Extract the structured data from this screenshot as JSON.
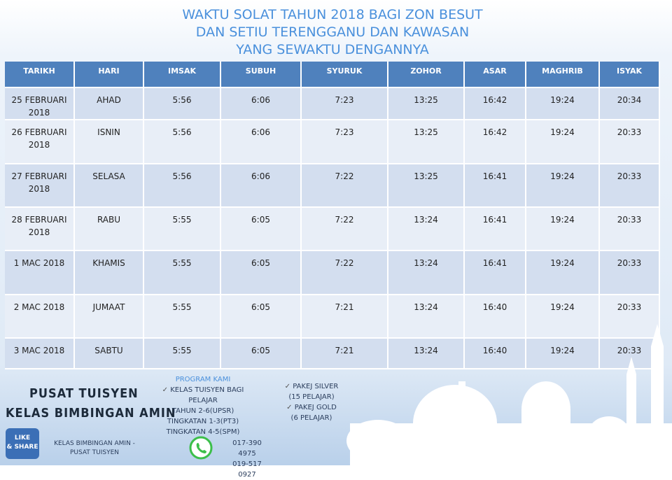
{
  "header": {
    "title_lines": [
      "WAKTU SOLAT TAHUN 2018 BAGI ZON BESUT",
      "DAN SETIU TERENGGANU DAN KAWASAN",
      "YANG SEWAKTU DENGANNYA"
    ]
  },
  "table": {
    "columns": [
      "TARIKH",
      "HARI",
      "IMSAK",
      "SUBUH",
      "SYURUK",
      "ZOHOR",
      "ASAR",
      "MAGHRIB",
      "ISYAK"
    ],
    "rows": [
      [
        "25 FEBRUARI 2018",
        "AHAD",
        "5:56",
        "6:06",
        "7:23",
        "13:25",
        "16:42",
        "19:24",
        "20:34"
      ],
      [
        "26 FEBRUARI 2018",
        "ISNIN",
        "5:56",
        "6:06",
        "7:23",
        "13:25",
        "16:42",
        "19:24",
        "20:33"
      ],
      [
        "27 FEBRUARI 2018",
        "SELASA",
        "5:56",
        "6:06",
        "7:22",
        "13:25",
        "16:41",
        "19:24",
        "20:33"
      ],
      [
        "28 FEBRUARI 2018",
        "RABU",
        "5:55",
        "6:05",
        "7:22",
        "13:24",
        "16:41",
        "19:24",
        "20:33"
      ],
      [
        "1 MAC 2018",
        "KHAMIS",
        "5:55",
        "6:05",
        "7:22",
        "13:24",
        "16:41",
        "19:24",
        "20:33"
      ],
      [
        "2 MAC 2018",
        "JUMAAT",
        "5:55",
        "6:05",
        "7:21",
        "13:24",
        "16:40",
        "19:24",
        "20:33"
      ],
      [
        "3 MAC 2018",
        "SABTU",
        "5:55",
        "6:05",
        "7:21",
        "13:24",
        "16:40",
        "19:24",
        "20:33"
      ]
    ]
  },
  "footer": {
    "brand_lines": [
      "PUSAT TUISYEN",
      "KELAS BIMBINGAN AMIN"
    ],
    "program": {
      "title": "PROGRAM KAMI",
      "items": [
        "KELAS TUISYEN BAGI PELAJAR",
        "TAHUN 2-6(UPSR)",
        "TINGKATAN 1-3(PT3)",
        "TINGKATAN 4-5(SPM)"
      ]
    },
    "packages": [
      {
        "name": "PAKEJ SILVER",
        "detail": "(15 PELAJAR)"
      },
      {
        "name": "PAKEJ GOLD",
        "detail": "(6 PELAJAR)"
      }
    ],
    "badge": [
      "LIKE",
      "& SHARE"
    ],
    "facebook": "KELAS BIMBINGAN AMIN - PUSAT TUISYEN",
    "phones": [
      "017-390 4975",
      "019-517 0927"
    ]
  }
}
